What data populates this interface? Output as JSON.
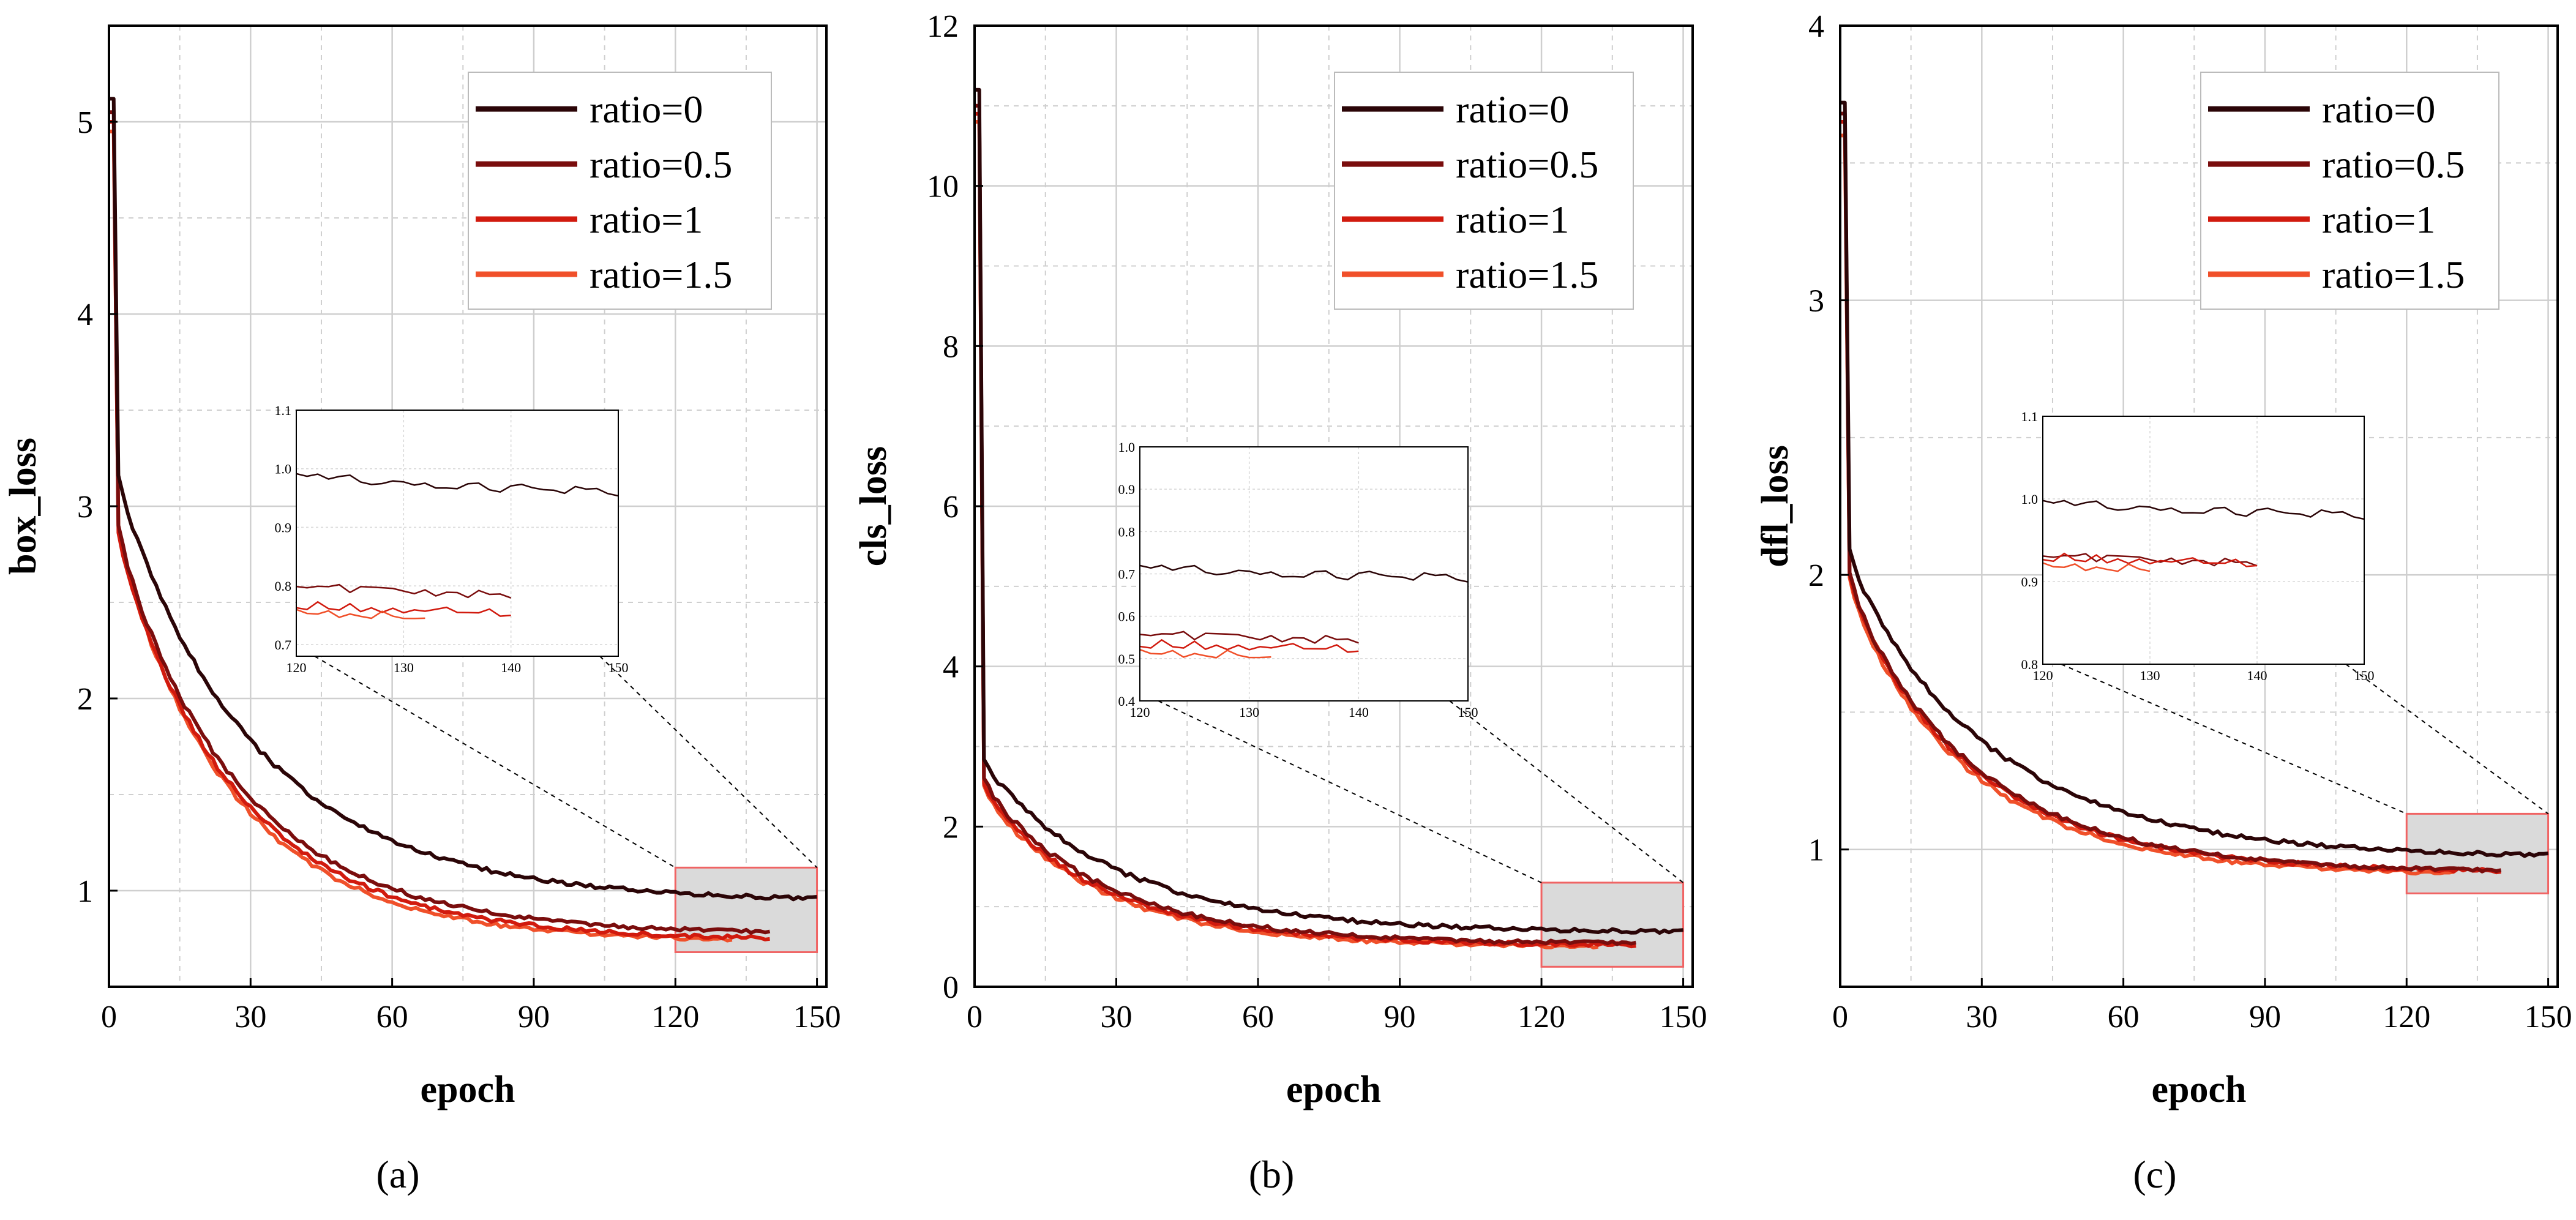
{
  "figure": {
    "captions": [
      "(a)",
      "(b)",
      "(c)"
    ],
    "colors": {
      "ratio_0": "#2b0507",
      "ratio_0.5": "#7a0d0d",
      "ratio_1": "#d11a0e",
      "ratio_1.5": "#f0502a",
      "zoom_box_fill": "#dadada",
      "zoom_box_stroke": "#f06464",
      "grid": "#cfcfcf"
    }
  },
  "chart_data": [
    {
      "type": "line",
      "caption": "(a)",
      "xlabel": "epoch",
      "ylabel": "box_loss",
      "xlim": [
        0,
        152
      ],
      "ylim": [
        0.5,
        5.5
      ],
      "xticks": [
        0,
        30,
        60,
        90,
        120,
        150
      ],
      "yticks": [
        1,
        2,
        3,
        4,
        5
      ],
      "ytick_labels": [
        "1",
        "2",
        "3",
        "4",
        "5"
      ],
      "grid": true,
      "legend": {
        "position": "top-right",
        "entries": [
          "ratio=0",
          "ratio=0.5",
          "ratio=1",
          "ratio=1.5"
        ]
      },
      "series": [
        {
          "name": "ratio=0",
          "color_key": "ratio_0",
          "end_epoch": 150,
          "start": 5.12,
          "final": 0.96,
          "a": 2.18,
          "b": 0.28,
          "k": 0.033
        },
        {
          "name": "ratio=0.5",
          "color_key": "ratio_0.5",
          "end_epoch": 140,
          "start": 5.05,
          "final": 0.78,
          "a": 2.05,
          "b": 0.36,
          "k": 0.037
        },
        {
          "name": "ratio=1",
          "color_key": "ratio_1",
          "end_epoch": 140,
          "start": 5.0,
          "final": 0.75,
          "a": 2.05,
          "b": 0.35,
          "k": 0.038
        },
        {
          "name": "ratio=1.5",
          "color_key": "ratio_1.5",
          "end_epoch": 132,
          "start": 4.95,
          "final": 0.74,
          "a": 2.1,
          "b": 0.35,
          "k": 0.04
        }
      ],
      "zoom_box": {
        "x": [
          120,
          150
        ],
        "y": [
          0.68,
          1.12
        ]
      },
      "inset": {
        "xlim": [
          120,
          150
        ],
        "ylim": [
          0.68,
          1.1
        ],
        "xticks": [
          120,
          130,
          140,
          150
        ],
        "yticks": [
          0.7,
          0.8,
          0.9,
          1.0,
          1.1
        ],
        "ytick_labels": [
          "0.7",
          "0.8",
          "0.9",
          "1.0",
          "1.1"
        ]
      }
    },
    {
      "type": "line",
      "caption": "(b)",
      "xlabel": "epoch",
      "ylabel": "cls_loss",
      "xlim": [
        0,
        152
      ],
      "ylim": [
        0,
        12
      ],
      "xticks": [
        0,
        30,
        60,
        90,
        120,
        150
      ],
      "yticks": [
        0,
        2,
        4,
        6,
        8,
        10,
        12
      ],
      "ytick_labels": [
        "0",
        "2",
        "4",
        "6",
        "8",
        "10",
        "12"
      ],
      "grid": true,
      "legend": {
        "position": "top-right",
        "entries": [
          "ratio=0",
          "ratio=0.5",
          "ratio=1",
          "ratio=1.5"
        ]
      },
      "series": [
        {
          "name": "ratio=0",
          "color_key": "ratio_0",
          "end_epoch": 150,
          "start": 11.2,
          "final": 0.69,
          "a": 2.1,
          "b": 0.32,
          "k": 0.034
        },
        {
          "name": "ratio=0.5",
          "color_key": "ratio_0.5",
          "end_epoch": 140,
          "start": 11.0,
          "final": 0.54,
          "a": 1.95,
          "b": 0.42,
          "k": 0.038
        },
        {
          "name": "ratio=1",
          "color_key": "ratio_1",
          "end_epoch": 140,
          "start": 10.9,
          "final": 0.52,
          "a": 1.9,
          "b": 0.42,
          "k": 0.039
        },
        {
          "name": "ratio=1.5",
          "color_key": "ratio_1.5",
          "end_epoch": 132,
          "start": 10.8,
          "final": 0.5,
          "a": 1.9,
          "b": 0.42,
          "k": 0.04
        }
      ],
      "zoom_box": {
        "x": [
          120,
          150
        ],
        "y": [
          0.25,
          1.3
        ]
      },
      "inset": {
        "xlim": [
          120,
          150
        ],
        "ylim": [
          0.4,
          1.0
        ],
        "xticks": [
          120,
          130,
          140,
          150
        ],
        "yticks": [
          0.4,
          0.5,
          0.6,
          0.7,
          0.8,
          0.9,
          1.0
        ],
        "ytick_labels": [
          "0.4",
          "0.5",
          "0.6",
          "0.7",
          "0.8",
          "0.9",
          "1.0"
        ]
      }
    },
    {
      "type": "line",
      "caption": "(c)",
      "xlabel": "epoch",
      "ylabel": "dfl_loss",
      "xlim": [
        0,
        152
      ],
      "ylim": [
        0.5,
        4.0
      ],
      "xticks": [
        0,
        30,
        60,
        90,
        120,
        150
      ],
      "yticks": [
        1,
        2,
        3,
        4
      ],
      "ytick_labels": [
        "1",
        "2",
        "3",
        "4"
      ],
      "grid": true,
      "legend": {
        "position": "top-right",
        "entries": [
          "ratio=0",
          "ratio=0.5",
          "ratio=1",
          "ratio=1.5"
        ]
      },
      "series": [
        {
          "name": "ratio=0",
          "color_key": "ratio_0",
          "end_epoch": 150,
          "start": 3.72,
          "final": 0.98,
          "a": 1.05,
          "b": 0.22,
          "k": 0.032
        },
        {
          "name": "ratio=0.5",
          "color_key": "ratio_0.5",
          "end_epoch": 140,
          "start": 3.68,
          "final": 0.92,
          "a": 1.0,
          "b": 0.26,
          "k": 0.036
        },
        {
          "name": "ratio=1",
          "color_key": "ratio_1",
          "end_epoch": 140,
          "start": 3.65,
          "final": 0.92,
          "a": 1.0,
          "b": 0.25,
          "k": 0.037
        },
        {
          "name": "ratio=1.5",
          "color_key": "ratio_1.5",
          "end_epoch": 130,
          "start": 3.6,
          "final": 0.91,
          "a": 1.0,
          "b": 0.25,
          "k": 0.038
        }
      ],
      "zoom_box": {
        "x": [
          120,
          150
        ],
        "y": [
          0.84,
          1.13
        ]
      },
      "inset": {
        "xlim": [
          120,
          150
        ],
        "ylim": [
          0.8,
          1.1
        ],
        "xticks": [
          120,
          130,
          140,
          150
        ],
        "yticks": [
          0.8,
          0.9,
          1.0,
          1.1
        ],
        "ytick_labels": [
          "0.8",
          "0.9",
          "1.0",
          "1.1"
        ]
      }
    }
  ]
}
